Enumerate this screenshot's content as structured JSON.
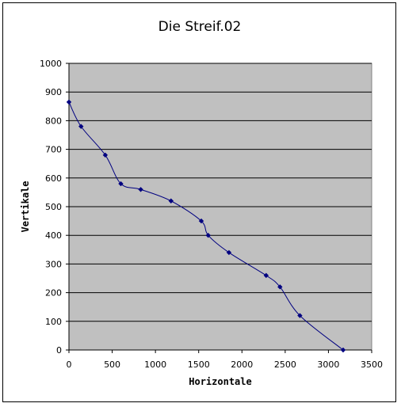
{
  "chart_data": {
    "type": "scatter",
    "title": "Die Streif.02",
    "xlabel": "Horizontale",
    "ylabel": "Vertikale",
    "xlim": [
      0,
      3500
    ],
    "ylim": [
      0,
      1000
    ],
    "xticks": [
      "0",
      "500",
      "1000",
      "1500",
      "2000",
      "2500",
      "3000",
      "3500"
    ],
    "yticks": [
      "0",
      "100",
      "200",
      "300",
      "400",
      "500",
      "600",
      "700",
      "800",
      "900",
      "1000"
    ],
    "grid": "horizontal major",
    "legend": "none",
    "smoothed_line": true,
    "series": [
      {
        "x": [
          0,
          140,
          420,
          600,
          830,
          1180,
          1530,
          1610,
          1850,
          2280,
          2440,
          2670,
          3170
        ],
        "y": [
          865,
          780,
          680,
          580,
          560,
          520,
          450,
          400,
          340,
          260,
          220,
          120,
          0
        ]
      }
    ],
    "colors": {
      "plot_area": "#c0c0c0",
      "line": "#000080",
      "marker": "#000080",
      "grid": "#000000"
    }
  }
}
